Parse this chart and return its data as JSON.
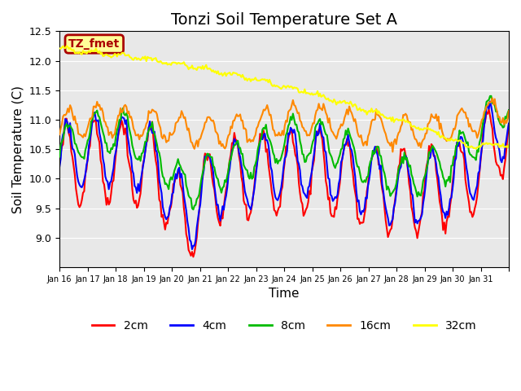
{
  "title": "Tonzi Soil Temperature Set A",
  "xlabel": "Time",
  "ylabel": "Soil Temperature (C)",
  "ylim": [
    8.5,
    12.5
  ],
  "yticks": [
    9.0,
    9.5,
    10.0,
    10.5,
    11.0,
    11.5,
    12.0,
    12.5
  ],
  "xtick_labels": [
    "Jan 16",
    "Jan 17",
    "Jan 18",
    "Jan 19",
    "Jan 20",
    "Jan 21",
    "Jan 22",
    "Jan 23",
    "Jan 24",
    "Jan 25",
    "Jan 26",
    "Jan 27",
    "Jan 28",
    "Jan 29",
    "Jan 30",
    "Jan 31"
  ],
  "line_colors": {
    "2cm": "#FF0000",
    "4cm": "#0000FF",
    "8cm": "#00BB00",
    "16cm": "#FF8800",
    "32cm": "#FFFF00"
  },
  "legend_labels": [
    "2cm",
    "4cm",
    "8cm",
    "16cm",
    "32cm"
  ],
  "label_text": "TZ_fmet",
  "label_bg": "#FFFF99",
  "label_border": "#AA0000",
  "label_text_color": "#AA0000",
  "bg_color": "#E8E8E8",
  "title_fontsize": 14,
  "axis_label_fontsize": 11,
  "n_days": 16
}
